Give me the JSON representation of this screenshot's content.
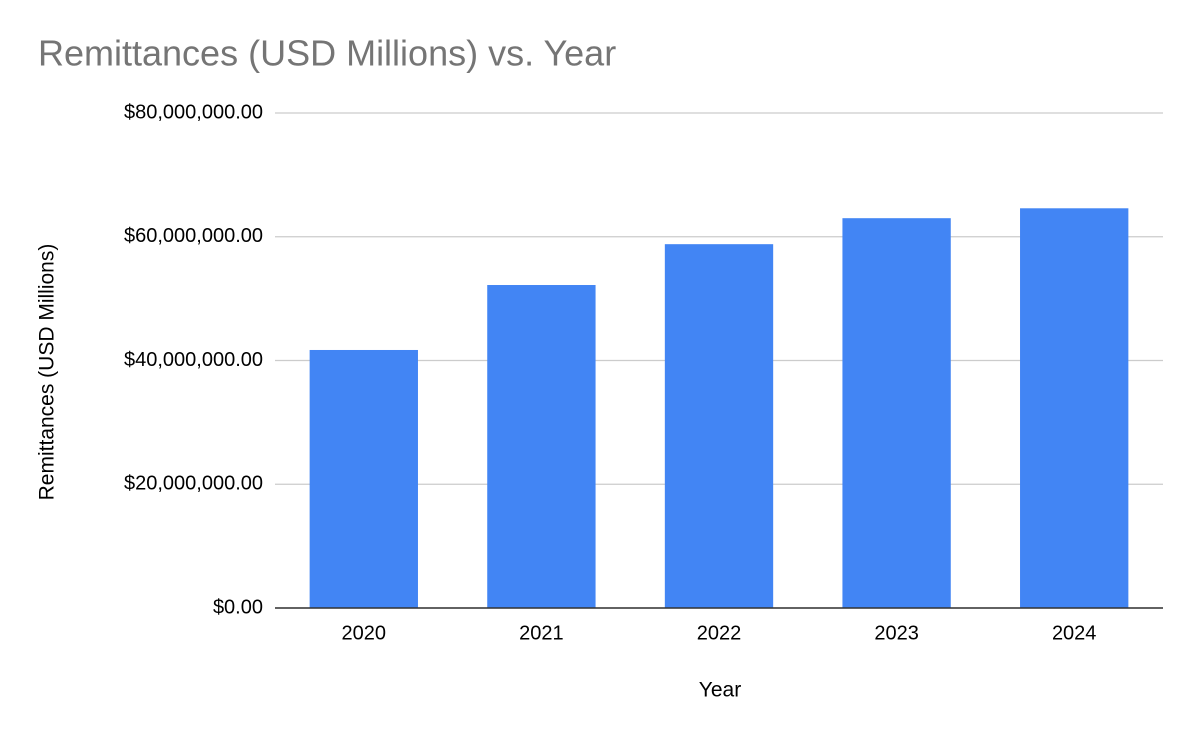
{
  "chart_data": {
    "type": "bar",
    "title": "Remittances (USD Millions) vs. Year",
    "x_label": "Year",
    "y_label": "Remittances (USD Millions)",
    "categories": [
      "2020",
      "2021",
      "2022",
      "2023",
      "2024"
    ],
    "values": [
      41700000,
      52200000,
      58800000,
      63000000,
      64600000
    ],
    "color": "#4285f4",
    "ylim": [
      0,
      80000000
    ],
    "yticks": [
      {
        "value": 0,
        "label": "$0.00"
      },
      {
        "value": 20000000,
        "label": "$20,000,000.00"
      },
      {
        "value": 40000000,
        "label": "$40,000,000.00"
      },
      {
        "value": 60000000,
        "label": "$60,000,000.00"
      },
      {
        "value": 80000000,
        "label": "$80,000,000.00"
      }
    ],
    "grid": true
  }
}
